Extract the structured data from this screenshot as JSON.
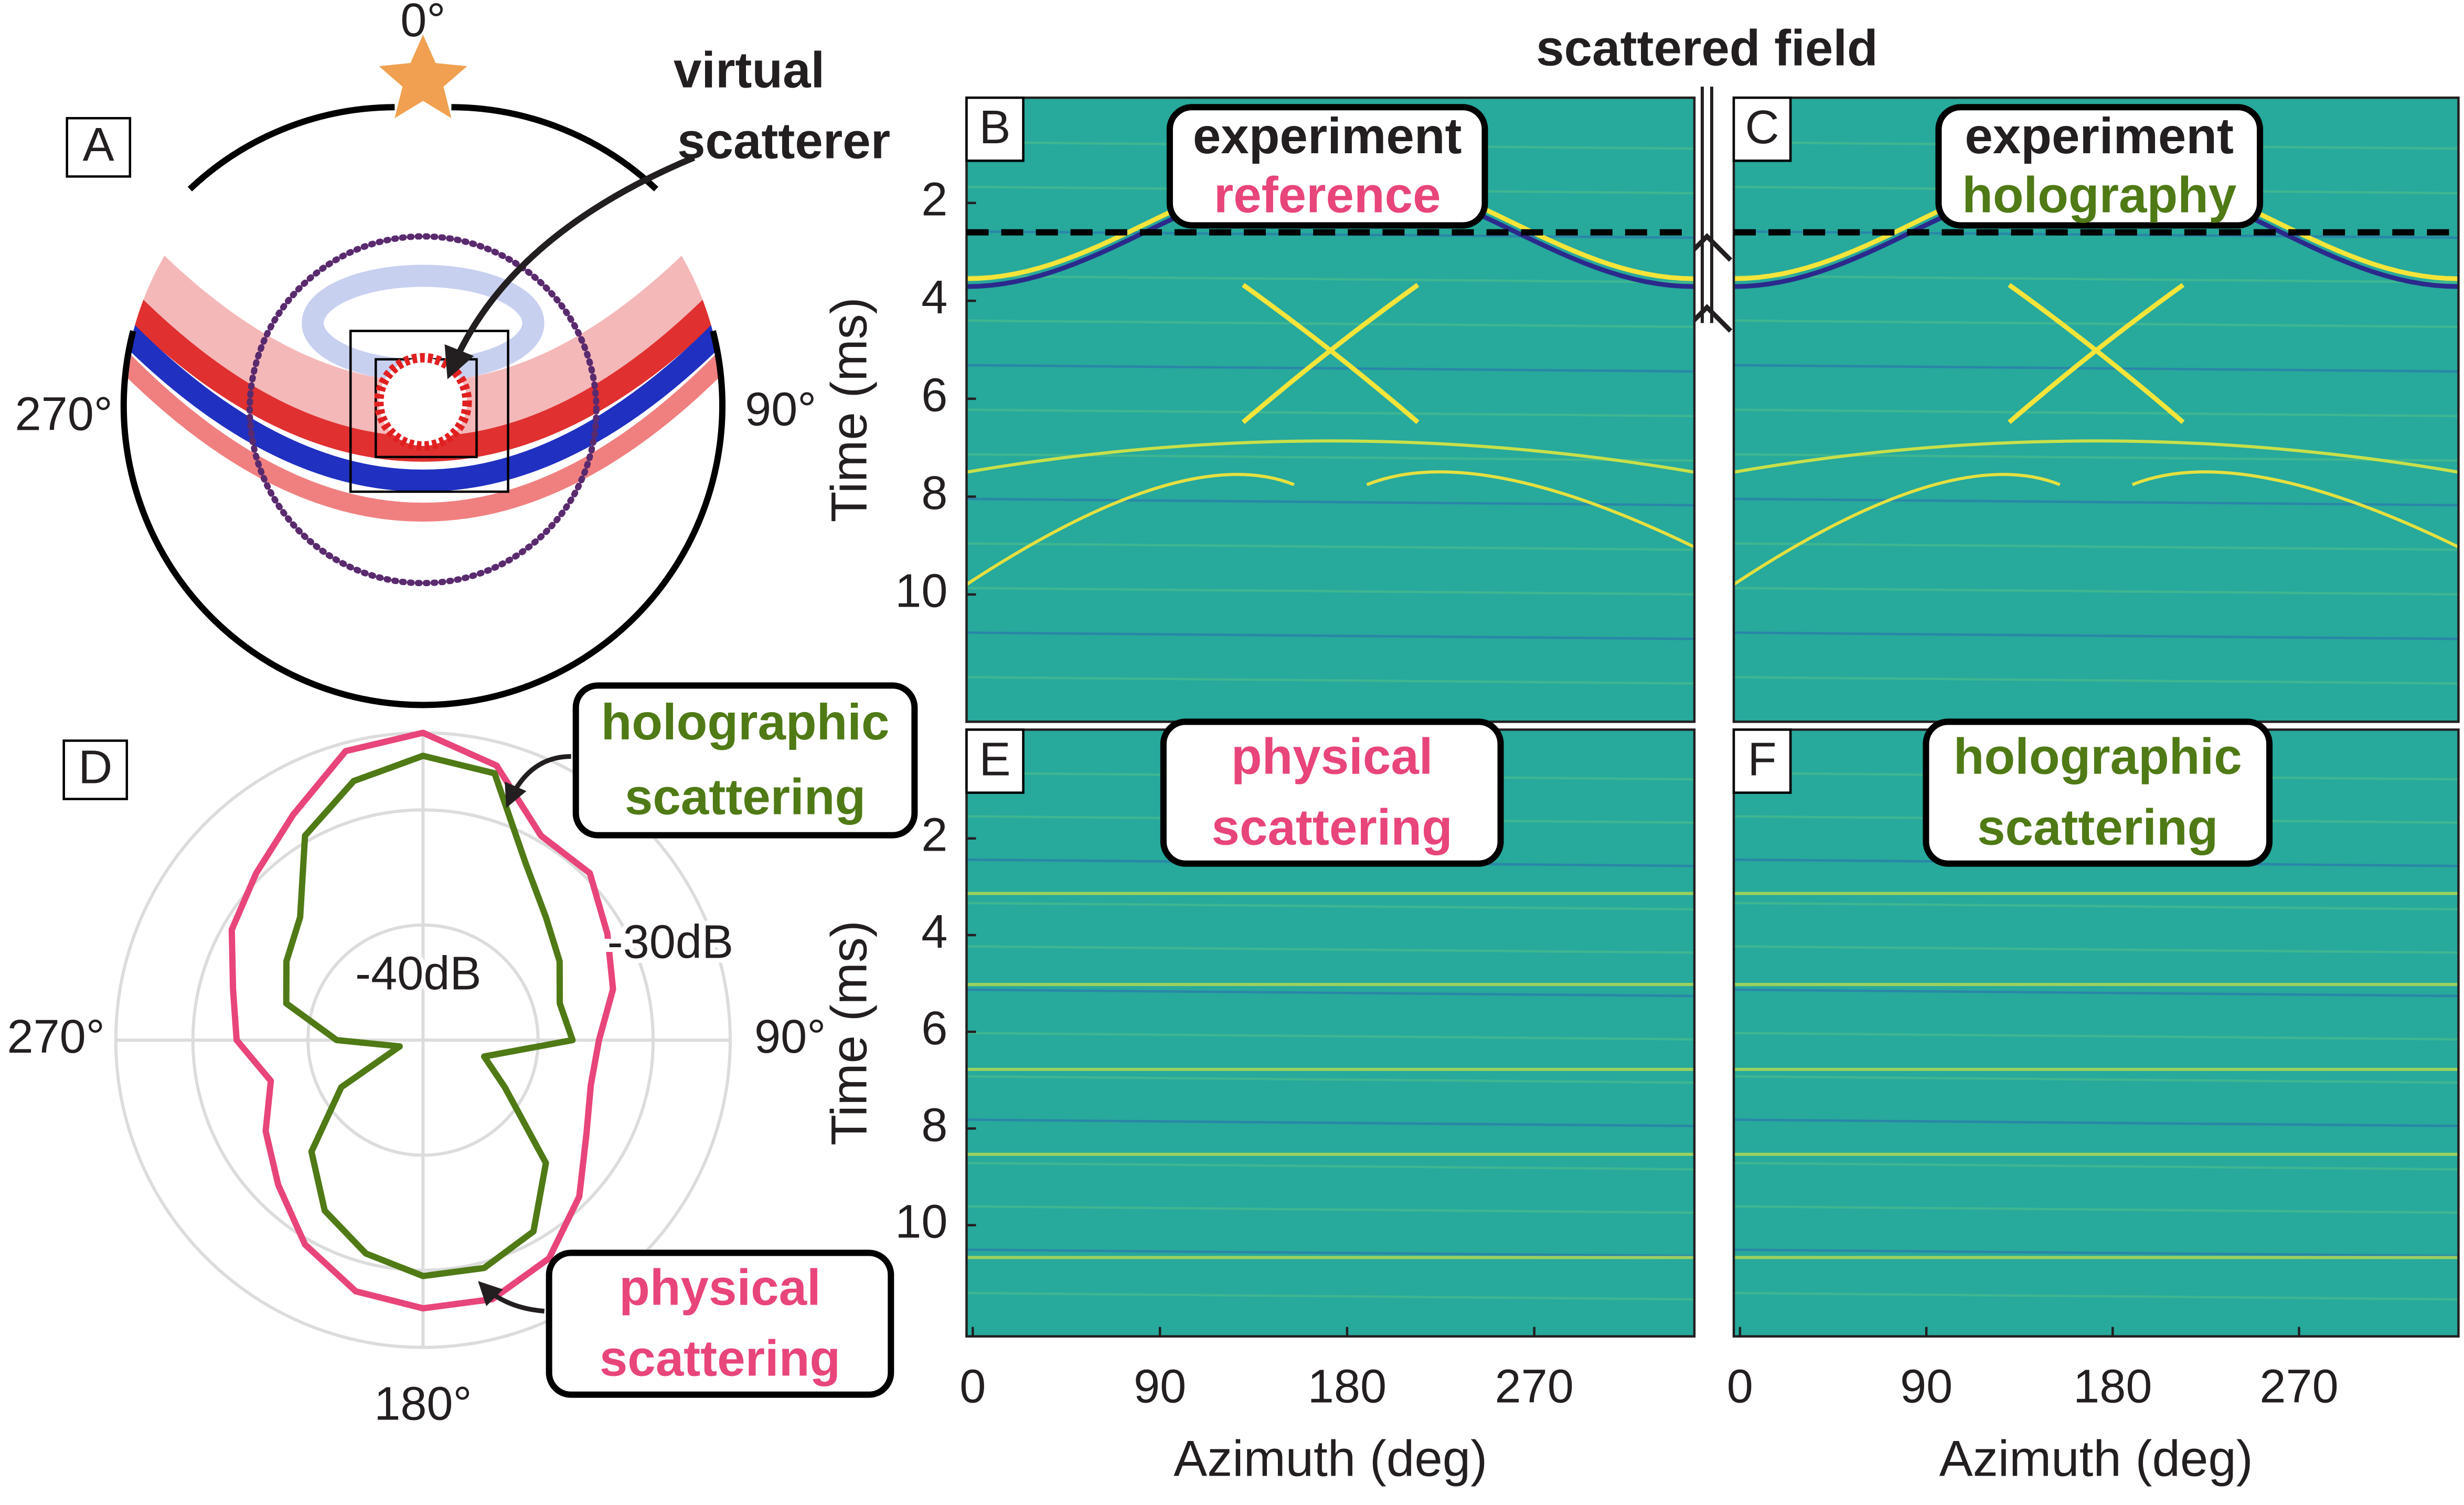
{
  "chart_data": [
    {
      "type": "diagram",
      "label": "A",
      "angle_labels": [
        "0°",
        "90°",
        "270°"
      ],
      "annotation": [
        "virtual",
        "scatterer"
      ]
    },
    {
      "type": "heatmap",
      "label": "B",
      "annotations": [
        "scattered field"
      ],
      "box_lines": [
        {
          "text": "experiment",
          "color": "#231f20"
        },
        {
          "text": "reference",
          "color": "#e8457a"
        }
      ],
      "xlim": [
        -3,
        347
      ],
      "ylim": [
        12.6,
        -0.15
      ],
      "yticks": [
        2,
        4,
        6,
        8,
        10
      ],
      "ylabel": "Time (ms)",
      "hline": 2.6
    },
    {
      "type": "heatmap",
      "label": "C",
      "box_lines": [
        {
          "text": "experiment",
          "color": "#231f20"
        },
        {
          "text": "holography",
          "color": "#4f7a16"
        }
      ],
      "xlim": [
        -3,
        347
      ],
      "ylim": [
        12.6,
        -0.15
      ],
      "hline": 2.6
    },
    {
      "type": "polar",
      "label": "D",
      "theta": [
        0,
        15,
        30,
        45,
        60,
        75,
        90,
        105,
        120,
        135,
        150,
        165,
        180,
        195,
        210,
        225,
        240,
        255,
        270,
        285,
        300,
        315,
        330,
        345
      ],
      "rlim": [
        -50,
        -23.3
      ],
      "rticks": [
        {
          "value": -40,
          "label": "-40dB"
        },
        {
          "value": -30,
          "label": "-30dB"
        }
      ],
      "thetaticks": [
        {
          "value": 90,
          "label": "90°"
        },
        {
          "value": 180,
          "label": "180°"
        },
        {
          "value": 270,
          "label": "270°"
        }
      ],
      "series": [
        {
          "name": "physical scattering",
          "color": "#e8457a",
          "values": [
            -23.3,
            -25.3,
            -29.5,
            -29.5,
            -31.5,
            -32.9,
            -34.7,
            -34.9,
            -33.6,
            -30.8,
            -28.1,
            -26.7,
            -26.7,
            -27.4,
            -29.5,
            -32.2,
            -34.2,
            -36.3,
            -33.8,
            -32.9,
            -30.8,
            -29.5,
            -27.4,
            -24
          ]
        },
        {
          "name": "holographic scattering",
          "color": "#4f7a16",
          "values": [
            -25.3,
            -26,
            -32.2,
            -34.9,
            -36.3,
            -37.7,
            -37,
            -44.5,
            -41.8,
            -34.9,
            -30.8,
            -29.5,
            -29.5,
            -30.8,
            -32.9,
            -36.3,
            -41.8,
            -47.9,
            -42.5,
            -37.7,
            -36.3,
            -34.9,
            -29.5,
            -26.7
          ]
        }
      ],
      "callouts": [
        {
          "lines": [
            "holographic",
            "scattering"
          ],
          "color": "#4f7a16"
        },
        {
          "lines": [
            "physical",
            "scattering"
          ],
          "color": "#e8457a"
        }
      ]
    },
    {
      "type": "heatmap",
      "label": "E",
      "box_lines": [
        {
          "text": "physical",
          "color": "#e8457a"
        },
        {
          "text": "scattering",
          "color": "#e8457a"
        }
      ],
      "xlim": [
        -3,
        347
      ],
      "ylim": [
        12.3,
        -0.25
      ],
      "xticks": [
        0,
        90,
        180,
        270
      ],
      "yticks": [
        2,
        4,
        6,
        8,
        10
      ],
      "xlabel": "Azimuth (deg)",
      "ylabel": "Time (ms)"
    },
    {
      "type": "heatmap",
      "label": "F",
      "box_lines": [
        {
          "text": "holographic",
          "color": "#4f7a16"
        },
        {
          "text": "scattering",
          "color": "#4f7a16"
        }
      ],
      "xlim": [
        -3,
        347
      ],
      "ylim": [
        12.3,
        -0.25
      ],
      "xticks": [
        0,
        90,
        180,
        270
      ],
      "xlabel": "Azimuth (deg)"
    }
  ]
}
